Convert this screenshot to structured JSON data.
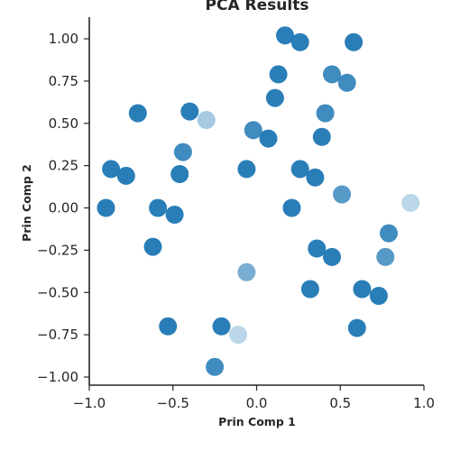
{
  "chart_data": {
    "type": "scatter",
    "title": "PCA Results",
    "xlabel": "Prin Comp 1",
    "ylabel": "Prin Comp 2",
    "xlim": [
      -1.0,
      1.0
    ],
    "ylim": [
      -1.05,
      1.12
    ],
    "xticks": [
      -1.0,
      -0.5,
      0.0,
      0.5,
      1.0
    ],
    "xtick_labels": [
      "−1.0",
      "−0.5",
      "0.0",
      "0.5",
      "1.0"
    ],
    "yticks": [
      -1.0,
      -0.75,
      -0.5,
      -0.25,
      0.0,
      0.25,
      0.5,
      0.75,
      1.0
    ],
    "ytick_labels": [
      "−1.00",
      "−0.75",
      "−0.50",
      "−0.25",
      "0.00",
      "0.25",
      "0.50",
      "0.75",
      "1.00"
    ],
    "grid": false,
    "color": "#1f77b4",
    "points": [
      {
        "x": 0.17,
        "y": 1.02,
        "alpha": 0.95
      },
      {
        "x": 0.26,
        "y": 0.98,
        "alpha": 0.95
      },
      {
        "x": 0.58,
        "y": 0.98,
        "alpha": 0.95
      },
      {
        "x": 0.13,
        "y": 0.79,
        "alpha": 0.95
      },
      {
        "x": 0.45,
        "y": 0.79,
        "alpha": 0.85
      },
      {
        "x": 0.54,
        "y": 0.74,
        "alpha": 0.85
      },
      {
        "x": 0.11,
        "y": 0.65,
        "alpha": 0.95
      },
      {
        "x": -0.71,
        "y": 0.56,
        "alpha": 0.95
      },
      {
        "x": -0.4,
        "y": 0.57,
        "alpha": 0.95
      },
      {
        "x": -0.3,
        "y": 0.52,
        "alpha": 0.4
      },
      {
        "x": 0.41,
        "y": 0.56,
        "alpha": 0.85
      },
      {
        "x": -0.02,
        "y": 0.46,
        "alpha": 0.85
      },
      {
        "x": 0.07,
        "y": 0.41,
        "alpha": 0.95
      },
      {
        "x": 0.39,
        "y": 0.42,
        "alpha": 0.95
      },
      {
        "x": -0.44,
        "y": 0.33,
        "alpha": 0.85
      },
      {
        "x": -0.87,
        "y": 0.23,
        "alpha": 0.95
      },
      {
        "x": -0.78,
        "y": 0.19,
        "alpha": 0.95
      },
      {
        "x": -0.46,
        "y": 0.2,
        "alpha": 0.95
      },
      {
        "x": -0.06,
        "y": 0.23,
        "alpha": 0.95
      },
      {
        "x": 0.26,
        "y": 0.23,
        "alpha": 0.95
      },
      {
        "x": 0.35,
        "y": 0.18,
        "alpha": 0.95
      },
      {
        "x": 0.51,
        "y": 0.08,
        "alpha": 0.75
      },
      {
        "x": 0.92,
        "y": 0.03,
        "alpha": 0.3
      },
      {
        "x": -0.9,
        "y": 0.0,
        "alpha": 0.95
      },
      {
        "x": -0.59,
        "y": 0.0,
        "alpha": 0.95
      },
      {
        "x": -0.49,
        "y": -0.04,
        "alpha": 0.95
      },
      {
        "x": 0.21,
        "y": 0.0,
        "alpha": 0.95
      },
      {
        "x": -0.62,
        "y": -0.23,
        "alpha": 0.95
      },
      {
        "x": 0.79,
        "y": -0.15,
        "alpha": 0.85
      },
      {
        "x": 0.36,
        "y": -0.24,
        "alpha": 0.95
      },
      {
        "x": 0.45,
        "y": -0.29,
        "alpha": 0.95
      },
      {
        "x": 0.77,
        "y": -0.29,
        "alpha": 0.75
      },
      {
        "x": -0.06,
        "y": -0.38,
        "alpha": 0.6
      },
      {
        "x": 0.32,
        "y": -0.48,
        "alpha": 0.95
      },
      {
        "x": 0.63,
        "y": -0.48,
        "alpha": 0.95
      },
      {
        "x": 0.73,
        "y": -0.52,
        "alpha": 0.95
      },
      {
        "x": -0.53,
        "y": -0.7,
        "alpha": 0.95
      },
      {
        "x": -0.21,
        "y": -0.7,
        "alpha": 0.95
      },
      {
        "x": -0.11,
        "y": -0.75,
        "alpha": 0.3
      },
      {
        "x": 0.6,
        "y": -0.71,
        "alpha": 0.95
      },
      {
        "x": -0.25,
        "y": -0.94,
        "alpha": 0.85
      }
    ]
  }
}
